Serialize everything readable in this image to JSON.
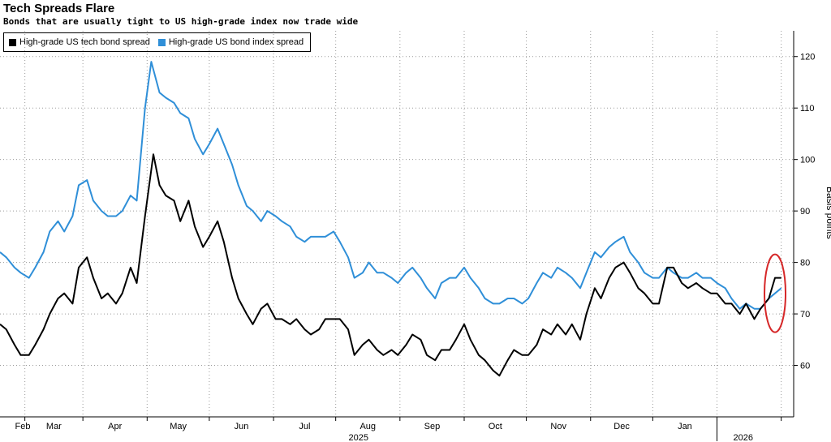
{
  "chart_data": {
    "type": "line",
    "title": "Tech Spreads Flare",
    "subtitle": "Bonds that are usually tight to US high-grade index now trade wide",
    "ylabel": "Basis points",
    "ylim": [
      50,
      125
    ],
    "yticks": [
      60,
      70,
      80,
      90,
      100,
      110,
      120
    ],
    "months": [
      "Feb",
      "Mar",
      "Apr",
      "May",
      "Jun",
      "Jul",
      "Aug",
      "Sep",
      "Oct",
      "Nov",
      "Dec",
      "Jan"
    ],
    "years": [
      "2025",
      "2026"
    ],
    "x_range": [
      "2025-01-20",
      "2026-02-07"
    ],
    "legend_position": "top-left",
    "grid": true,
    "series": [
      {
        "name": "High-grade US tech bond spread",
        "color": "#000000",
        "points": [
          [
            "2025-01-20",
            68
          ],
          [
            "2025-01-23",
            67
          ],
          [
            "2025-01-27",
            64
          ],
          [
            "2025-01-30",
            62
          ],
          [
            "2025-02-03",
            62
          ],
          [
            "2025-02-06",
            64
          ],
          [
            "2025-02-10",
            67
          ],
          [
            "2025-02-13",
            70
          ],
          [
            "2025-02-17",
            73
          ],
          [
            "2025-02-20",
            74
          ],
          [
            "2025-02-24",
            72
          ],
          [
            "2025-02-27",
            79
          ],
          [
            "2025-03-03",
            81
          ],
          [
            "2025-03-06",
            77
          ],
          [
            "2025-03-10",
            73
          ],
          [
            "2025-03-13",
            74
          ],
          [
            "2025-03-17",
            72
          ],
          [
            "2025-03-20",
            74
          ],
          [
            "2025-03-24",
            79
          ],
          [
            "2025-03-27",
            76
          ],
          [
            "2025-03-31",
            89
          ],
          [
            "2025-04-04",
            101
          ],
          [
            "2025-04-07",
            95
          ],
          [
            "2025-04-10",
            93
          ],
          [
            "2025-04-14",
            92
          ],
          [
            "2025-04-17",
            88
          ],
          [
            "2025-04-21",
            92
          ],
          [
            "2025-04-24",
            87
          ],
          [
            "2025-04-28",
            83
          ],
          [
            "2025-05-01",
            85
          ],
          [
            "2025-05-05",
            88
          ],
          [
            "2025-05-08",
            84
          ],
          [
            "2025-05-12",
            77
          ],
          [
            "2025-05-15",
            73
          ],
          [
            "2025-05-19",
            70
          ],
          [
            "2025-05-22",
            68
          ],
          [
            "2025-05-26",
            71
          ],
          [
            "2025-05-29",
            72
          ],
          [
            "2025-06-02",
            69
          ],
          [
            "2025-06-05",
            69
          ],
          [
            "2025-06-09",
            68
          ],
          [
            "2025-06-12",
            69
          ],
          [
            "2025-06-16",
            67
          ],
          [
            "2025-06-19",
            66
          ],
          [
            "2025-06-23",
            67
          ],
          [
            "2025-06-26",
            69
          ],
          [
            "2025-06-30",
            69
          ],
          [
            "2025-07-03",
            69
          ],
          [
            "2025-07-07",
            67
          ],
          [
            "2025-07-10",
            62
          ],
          [
            "2025-07-14",
            64
          ],
          [
            "2025-07-17",
            65
          ],
          [
            "2025-07-21",
            63
          ],
          [
            "2025-07-24",
            62
          ],
          [
            "2025-07-28",
            63
          ],
          [
            "2025-07-31",
            62
          ],
          [
            "2025-08-04",
            64
          ],
          [
            "2025-08-07",
            66
          ],
          [
            "2025-08-11",
            65
          ],
          [
            "2025-08-14",
            62
          ],
          [
            "2025-08-18",
            61
          ],
          [
            "2025-08-21",
            63
          ],
          [
            "2025-08-25",
            63
          ],
          [
            "2025-08-28",
            65
          ],
          [
            "2025-09-01",
            68
          ],
          [
            "2025-09-04",
            65
          ],
          [
            "2025-09-08",
            62
          ],
          [
            "2025-09-11",
            61
          ],
          [
            "2025-09-15",
            59
          ],
          [
            "2025-09-18",
            58
          ],
          [
            "2025-09-22",
            61
          ],
          [
            "2025-09-25",
            63
          ],
          [
            "2025-09-29",
            62
          ],
          [
            "2025-10-02",
            62
          ],
          [
            "2025-10-06",
            64
          ],
          [
            "2025-10-09",
            67
          ],
          [
            "2025-10-13",
            66
          ],
          [
            "2025-10-16",
            68
          ],
          [
            "2025-10-20",
            66
          ],
          [
            "2025-10-23",
            68
          ],
          [
            "2025-10-27",
            65
          ],
          [
            "2025-10-30",
            70
          ],
          [
            "2025-11-03",
            75
          ],
          [
            "2025-11-06",
            73
          ],
          [
            "2025-11-10",
            77
          ],
          [
            "2025-11-13",
            79
          ],
          [
            "2025-11-17",
            80
          ],
          [
            "2025-11-20",
            78
          ],
          [
            "2025-11-24",
            75
          ],
          [
            "2025-11-27",
            74
          ],
          [
            "2025-12-01",
            72
          ],
          [
            "2025-12-04",
            72
          ],
          [
            "2025-12-08",
            79
          ],
          [
            "2025-12-11",
            79
          ],
          [
            "2025-12-15",
            76
          ],
          [
            "2025-12-18",
            75
          ],
          [
            "2025-12-22",
            76
          ],
          [
            "2025-12-25",
            75
          ],
          [
            "2025-12-29",
            74
          ],
          [
            "2026-01-01",
            74
          ],
          [
            "2026-01-05",
            72
          ],
          [
            "2026-01-08",
            72
          ],
          [
            "2026-01-12",
            70
          ],
          [
            "2026-01-15",
            72
          ],
          [
            "2026-01-19",
            69
          ],
          [
            "2026-01-22",
            71
          ],
          [
            "2026-01-26",
            73
          ],
          [
            "2026-01-29",
            77
          ],
          [
            "2026-02-01",
            77
          ]
        ]
      },
      {
        "name": "High-grade US bond index spread",
        "color": "#2f8fd8",
        "points": [
          [
            "2025-01-20",
            82
          ],
          [
            "2025-01-23",
            81
          ],
          [
            "2025-01-27",
            79
          ],
          [
            "2025-01-30",
            78
          ],
          [
            "2025-02-03",
            77
          ],
          [
            "2025-02-06",
            79
          ],
          [
            "2025-02-10",
            82
          ],
          [
            "2025-02-13",
            86
          ],
          [
            "2025-02-17",
            88
          ],
          [
            "2025-02-20",
            86
          ],
          [
            "2025-02-24",
            89
          ],
          [
            "2025-02-27",
            95
          ],
          [
            "2025-03-03",
            96
          ],
          [
            "2025-03-06",
            92
          ],
          [
            "2025-03-10",
            90
          ],
          [
            "2025-03-13",
            89
          ],
          [
            "2025-03-17",
            89
          ],
          [
            "2025-03-20",
            90
          ],
          [
            "2025-03-24",
            93
          ],
          [
            "2025-03-27",
            92
          ],
          [
            "2025-03-31",
            110
          ],
          [
            "2025-04-03",
            119
          ],
          [
            "2025-04-07",
            113
          ],
          [
            "2025-04-10",
            112
          ],
          [
            "2025-04-14",
            111
          ],
          [
            "2025-04-17",
            109
          ],
          [
            "2025-04-21",
            108
          ],
          [
            "2025-04-24",
            104
          ],
          [
            "2025-04-28",
            101
          ],
          [
            "2025-05-01",
            103
          ],
          [
            "2025-05-05",
            106
          ],
          [
            "2025-05-08",
            103
          ],
          [
            "2025-05-12",
            99
          ],
          [
            "2025-05-15",
            95
          ],
          [
            "2025-05-19",
            91
          ],
          [
            "2025-05-22",
            90
          ],
          [
            "2025-05-26",
            88
          ],
          [
            "2025-05-29",
            90
          ],
          [
            "2025-06-02",
            89
          ],
          [
            "2025-06-05",
            88
          ],
          [
            "2025-06-09",
            87
          ],
          [
            "2025-06-12",
            85
          ],
          [
            "2025-06-16",
            84
          ],
          [
            "2025-06-19",
            85
          ],
          [
            "2025-06-23",
            85
          ],
          [
            "2025-06-26",
            85
          ],
          [
            "2025-06-30",
            86
          ],
          [
            "2025-07-03",
            84
          ],
          [
            "2025-07-07",
            81
          ],
          [
            "2025-07-10",
            77
          ],
          [
            "2025-07-14",
            78
          ],
          [
            "2025-07-17",
            80
          ],
          [
            "2025-07-21",
            78
          ],
          [
            "2025-07-24",
            78
          ],
          [
            "2025-07-28",
            77
          ],
          [
            "2025-07-31",
            76
          ],
          [
            "2025-08-04",
            78
          ],
          [
            "2025-08-07",
            79
          ],
          [
            "2025-08-11",
            77
          ],
          [
            "2025-08-14",
            75
          ],
          [
            "2025-08-18",
            73
          ],
          [
            "2025-08-21",
            76
          ],
          [
            "2025-08-25",
            77
          ],
          [
            "2025-08-28",
            77
          ],
          [
            "2025-09-01",
            79
          ],
          [
            "2025-09-04",
            77
          ],
          [
            "2025-09-08",
            75
          ],
          [
            "2025-09-11",
            73
          ],
          [
            "2025-09-15",
            72
          ],
          [
            "2025-09-18",
            72
          ],
          [
            "2025-09-22",
            73
          ],
          [
            "2025-09-25",
            73
          ],
          [
            "2025-09-29",
            72
          ],
          [
            "2025-10-02",
            73
          ],
          [
            "2025-10-06",
            76
          ],
          [
            "2025-10-09",
            78
          ],
          [
            "2025-10-13",
            77
          ],
          [
            "2025-10-16",
            79
          ],
          [
            "2025-10-20",
            78
          ],
          [
            "2025-10-23",
            77
          ],
          [
            "2025-10-27",
            75
          ],
          [
            "2025-10-30",
            78
          ],
          [
            "2025-11-03",
            82
          ],
          [
            "2025-11-06",
            81
          ],
          [
            "2025-11-10",
            83
          ],
          [
            "2025-11-13",
            84
          ],
          [
            "2025-11-17",
            85
          ],
          [
            "2025-11-20",
            82
          ],
          [
            "2025-11-24",
            80
          ],
          [
            "2025-11-27",
            78
          ],
          [
            "2025-12-01",
            77
          ],
          [
            "2025-12-04",
            77
          ],
          [
            "2025-12-08",
            79
          ],
          [
            "2025-12-11",
            78
          ],
          [
            "2025-12-15",
            77
          ],
          [
            "2025-12-18",
            77
          ],
          [
            "2025-12-22",
            78
          ],
          [
            "2025-12-25",
            77
          ],
          [
            "2025-12-29",
            77
          ],
          [
            "2026-01-01",
            76
          ],
          [
            "2026-01-05",
            75
          ],
          [
            "2026-01-08",
            73
          ],
          [
            "2026-01-12",
            71
          ],
          [
            "2026-01-15",
            72
          ],
          [
            "2026-01-19",
            71
          ],
          [
            "2026-01-22",
            71
          ],
          [
            "2026-01-26",
            73
          ],
          [
            "2026-01-29",
            74
          ],
          [
            "2026-02-01",
            75
          ]
        ]
      }
    ],
    "annotations": [
      {
        "type": "ellipse",
        "color": "#d62728",
        "x_center": "2026-01-29",
        "y_center": 74
      }
    ]
  }
}
